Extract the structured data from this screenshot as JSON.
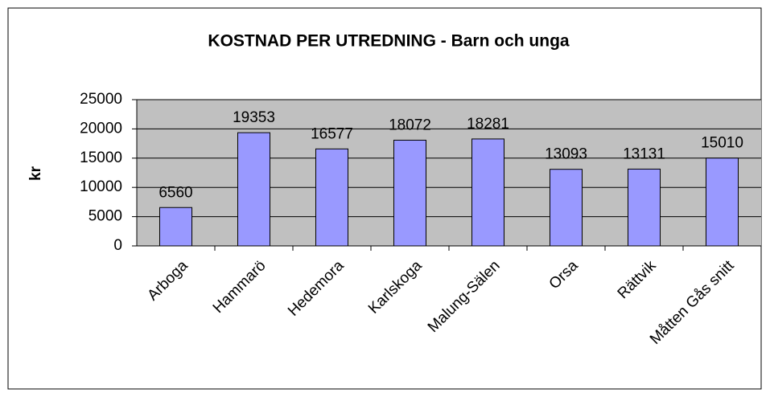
{
  "chart_data": {
    "type": "bar",
    "title": "KOSTNAD PER UTREDNING - Barn och unga",
    "ylabel": "kr",
    "categories": [
      "Arboga",
      "Hammarö",
      "Hedemora",
      "Karlskoga",
      "Malung-Sälen",
      "Orsa",
      "Rättvik",
      "Måtten Gås snitt"
    ],
    "values": [
      6560,
      19353,
      16577,
      18072,
      18281,
      13093,
      13131,
      15010
    ],
    "color": "#9999ff",
    "ylim": [
      0,
      25000
    ],
    "yticks": [
      0,
      5000,
      10000,
      15000,
      20000,
      25000
    ],
    "grid": true
  }
}
